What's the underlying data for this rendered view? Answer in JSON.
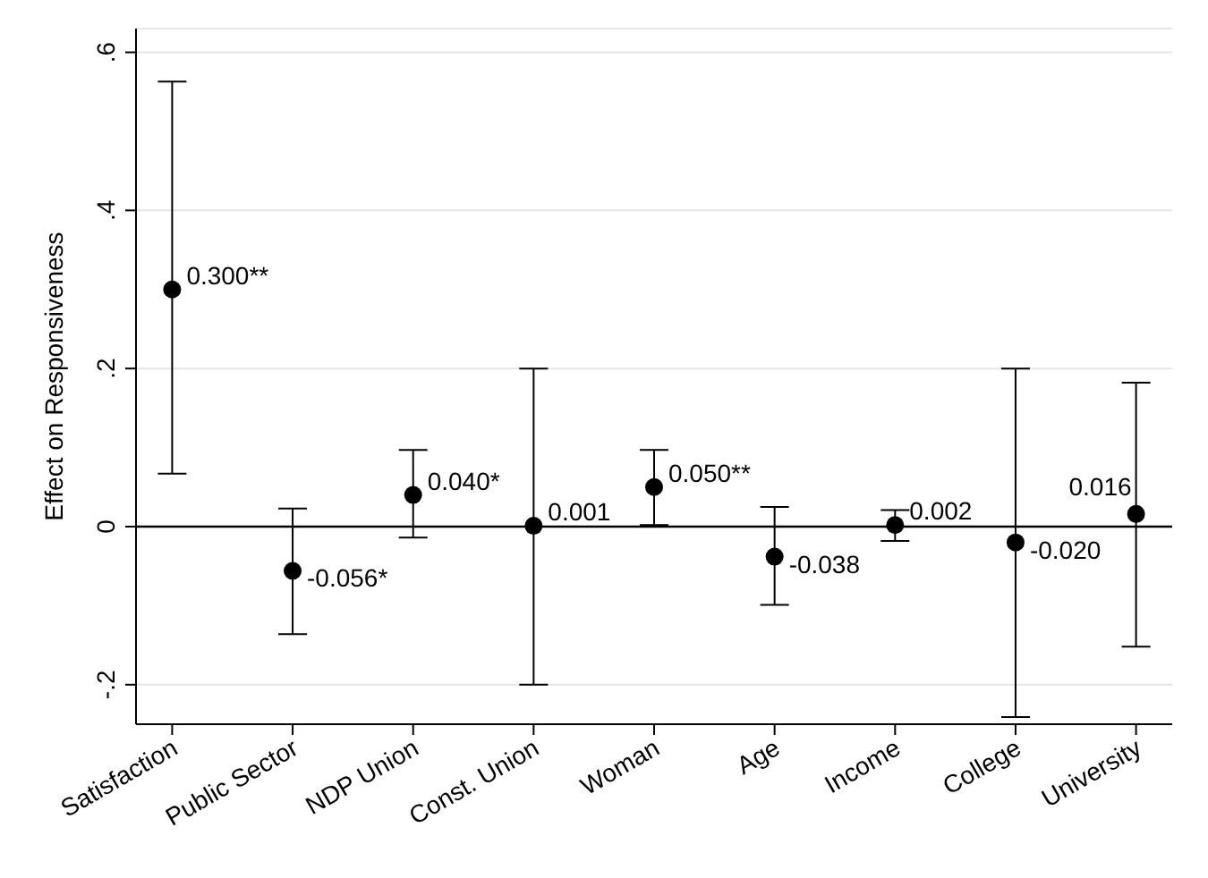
{
  "chart_data": {
    "type": "scatter",
    "ylabel": "Effect on Responsiveness",
    "categories": [
      "Satisfaction",
      "Public Sector",
      "NDP Union",
      "Const. Union",
      "Woman",
      "Age",
      "Income",
      "College",
      "University"
    ],
    "series": [
      {
        "color": "#000000",
        "values": [
          0.3,
          -0.056,
          0.04,
          0.001,
          0.05,
          -0.038,
          0.002,
          -0.02,
          0.016
        ],
        "value_labels": [
          "0.300**",
          "-0.056*",
          "0.040*",
          "0.001",
          "0.050**",
          "-0.038",
          "0.002",
          "-0.020",
          "0.016"
        ],
        "errors": [
          [
            0.067,
            0.563
          ],
          [
            -0.136,
            0.023
          ],
          [
            -0.014,
            0.097
          ],
          [
            -0.2,
            0.2
          ],
          [
            0.002,
            0.097
          ],
          [
            -0.099,
            0.025
          ],
          [
            -0.018,
            0.021
          ],
          [
            -0.241,
            0.2
          ],
          [
            -0.152,
            0.182
          ]
        ]
      }
    ],
    "ylim": [
      -0.25,
      0.63
    ],
    "yticks": [
      {
        "value": -0.2,
        "label": "-.2"
      },
      {
        "value": 0,
        "label": "0"
      },
      {
        "value": 0.2,
        "label": ".2"
      },
      {
        "value": 0.4,
        "label": ".4"
      },
      {
        "value": 0.6,
        "label": ".6"
      }
    ],
    "ref_lines": [
      {
        "axis": "y",
        "value": 0,
        "color": "#000000"
      }
    ],
    "grid": "y",
    "marker": "circle",
    "legend": false
  }
}
